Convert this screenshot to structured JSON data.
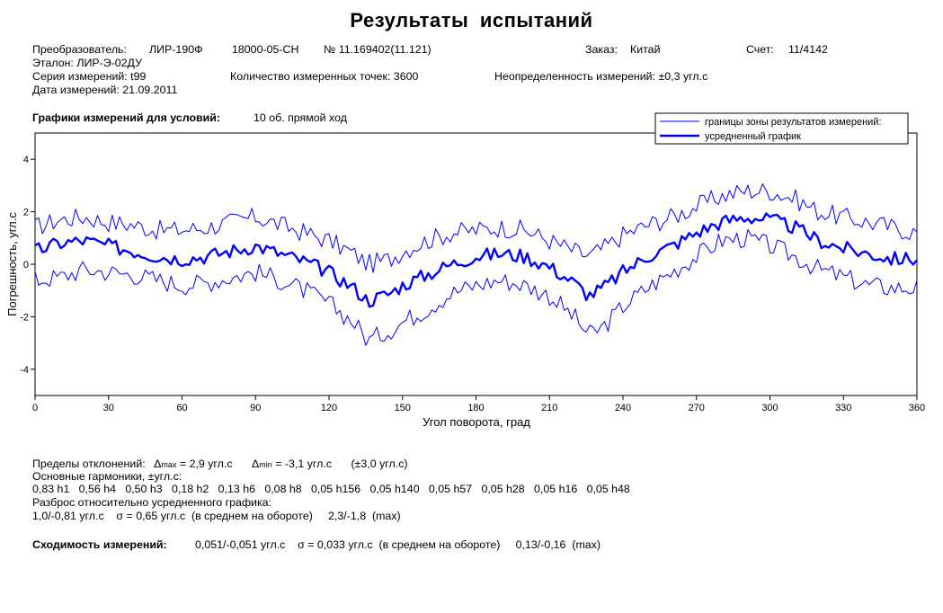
{
  "header": {
    "title": "Результаты испытаний",
    "converter_label": "Преобразователь:",
    "converter_model": "ЛИР-190Ф",
    "converter_code": "18000-05-СН",
    "converter_number": "№ 11.169402(11.121)",
    "order_label": "Заказ:",
    "order_value": "Китай",
    "account_label": "Счет:",
    "account_value": "11/4142",
    "reference": "Эталон:   ЛИР-Э-02ДУ",
    "series": "Серия измерений:   t99",
    "points": "Количество измеренных точек:   3600",
    "uncertainty": "Неопределенность измерений:   ±0,3 угл.с",
    "date": "Дата  измерений:   21.09.2011"
  },
  "conditions": {
    "label": "Графики измерений для условий:",
    "value": "10 об. прямой ход"
  },
  "chart_data": {
    "type": "line",
    "xlabel": "Угол поворота, град",
    "ylabel": "Погрешность, угл.с",
    "xlim": [
      0,
      360
    ],
    "ylim": [
      -5,
      5
    ],
    "x_ticks": [
      0,
      30,
      60,
      90,
      120,
      150,
      180,
      210,
      240,
      270,
      300,
      330,
      360
    ],
    "y_ticks": [
      -4,
      -2,
      0,
      2,
      4
    ],
    "x_tick_labels": [
      "0",
      "30",
      "60",
      "90",
      "120",
      "150",
      "180",
      "210",
      "240",
      "270",
      "300",
      "330",
      "360"
    ],
    "y_tick_labels": [
      "-4",
      "-2",
      "0",
      "2",
      "4"
    ],
    "grid": false,
    "legend_position": "top-right",
    "x": [
      0,
      10,
      20,
      30,
      40,
      50,
      60,
      70,
      80,
      90,
      100,
      110,
      120,
      130,
      136,
      145,
      150,
      160,
      170,
      180,
      190,
      200,
      210,
      220,
      226,
      232,
      240,
      250,
      260,
      270,
      280,
      290,
      300,
      310,
      320,
      330,
      340,
      350,
      360
    ],
    "series": [
      {
        "name": "границы зоны результатов измерений:",
        "role": "upper",
        "color": "#0000ff",
        "values": [
          1.4,
          1.7,
          1.8,
          1.6,
          1.5,
          1.3,
          1.3,
          1.4,
          1.6,
          1.8,
          1.5,
          1.2,
          0.9,
          0.4,
          0.0,
          0.2,
          0.5,
          0.9,
          1.2,
          1.3,
          1.4,
          1.3,
          0.9,
          0.5,
          0.3,
          0.6,
          1.1,
          1.5,
          1.8,
          2.2,
          2.6,
          2.8,
          2.8,
          2.5,
          2.0,
          1.8,
          1.6,
          1.4,
          1.2
        ]
      },
      {
        "name": "",
        "role": "lower",
        "color": "#0000ff",
        "values": [
          -0.6,
          -0.5,
          -0.2,
          -0.3,
          -0.4,
          -0.6,
          -0.8,
          -0.7,
          -0.5,
          -0.3,
          -0.6,
          -1.0,
          -1.5,
          -2.2,
          -2.9,
          -2.5,
          -2.2,
          -1.7,
          -1.1,
          -0.8,
          -0.6,
          -0.8,
          -1.2,
          -2.0,
          -2.7,
          -2.4,
          -1.6,
          -0.9,
          -0.3,
          0.3,
          0.9,
          1.0,
          0.7,
          0.3,
          -0.2,
          -0.5,
          -0.8,
          -0.9,
          -0.9
        ]
      },
      {
        "name": "усредненный график",
        "role": "mean",
        "color": "#0000ff",
        "values": [
          0.5,
          0.8,
          0.9,
          0.7,
          0.5,
          0.3,
          0.2,
          0.3,
          0.5,
          0.7,
          0.4,
          0.1,
          -0.3,
          -0.9,
          -1.4,
          -1.1,
          -0.8,
          -0.4,
          0.0,
          0.3,
          0.4,
          0.3,
          -0.1,
          -0.7,
          -1.2,
          -0.9,
          -0.3,
          0.3,
          0.7,
          1.2,
          1.6,
          1.8,
          1.7,
          1.4,
          0.9,
          0.6,
          0.4,
          0.2,
          0.2
        ]
      }
    ]
  },
  "footer": {
    "limits_prefix": "Пределы отклонений:",
    "delta_max_sub": "max",
    "delta_max_value": "= 2,9  угл.с",
    "delta_min_sub": "min",
    "delta_min_value": "= -3,1 угл.с",
    "limits_range": "(±3,0 угл.с)",
    "harmonics_label": "Основные гармоники, ±угл.с:",
    "harmonics": "0,83 h1   0,56 h4   0,50 h3   0,18 h2   0,13 h6   0,08 h8   0,05 h156   0,05 h140   0,05 h57   0,05 h28   0,05 h16   0,05 h48",
    "spread_label": "Разброс относительно усредненного графика:",
    "spread_values": "1,0/-0,81 угл.с    σ = 0,65 угл.с  (в среднем на обороте)     2,3/-1,8  (max)",
    "convergence_label": "Сходимость измерений:",
    "convergence_values": "0,051/-0,051 угл.с    σ = 0,033 угл.с  (в среднем на обороте)     0,13/-0,16  (max)"
  }
}
